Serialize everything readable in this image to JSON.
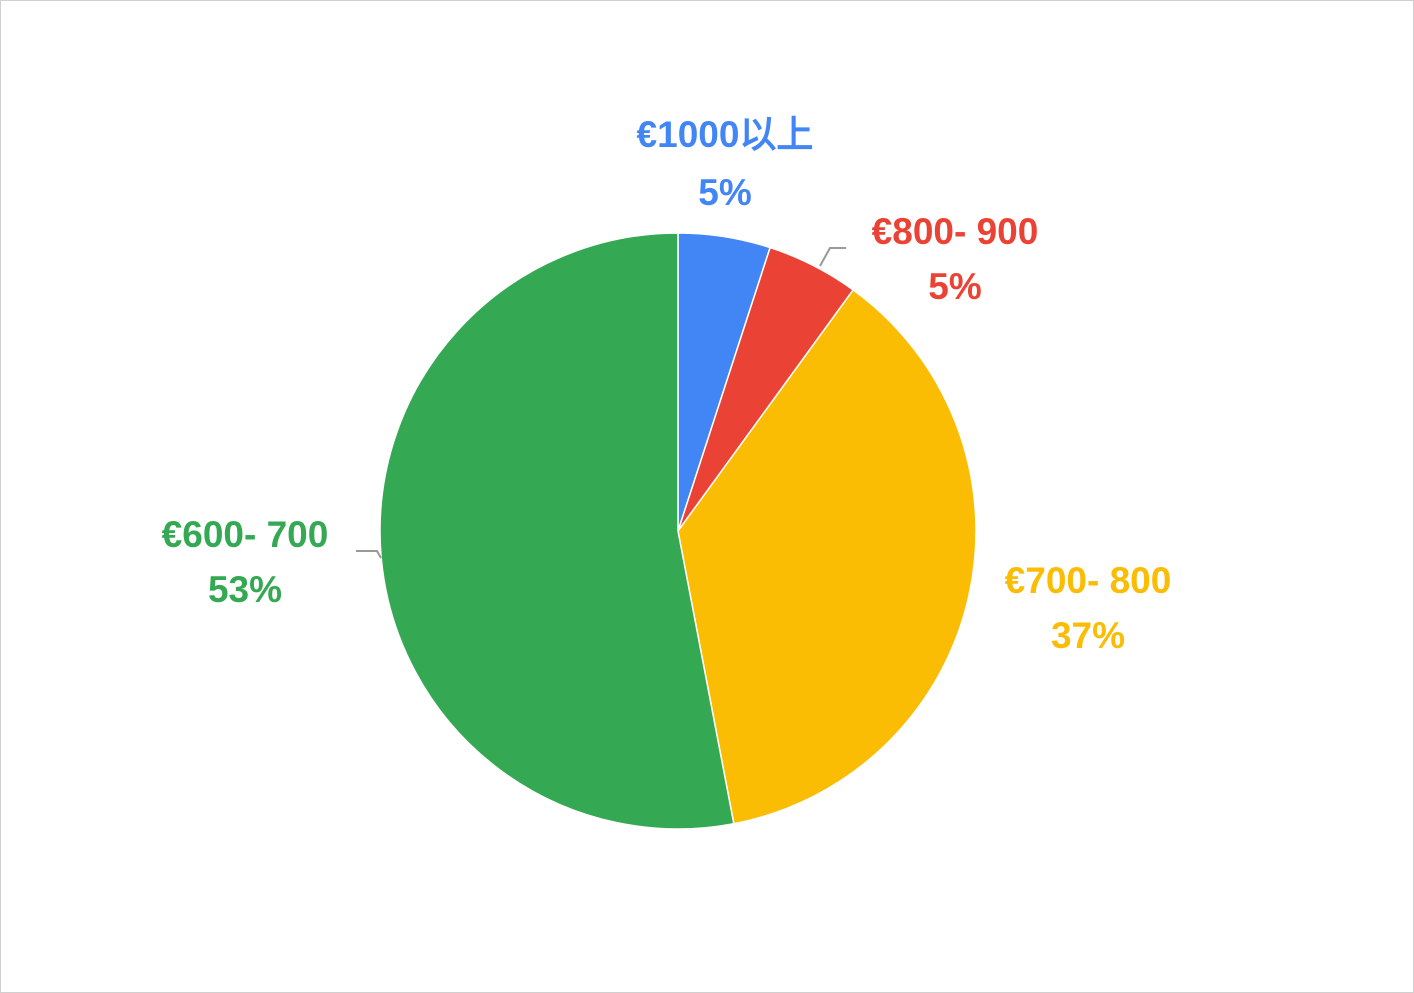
{
  "chart_data": {
    "type": "pie",
    "categories": [
      "€1000以上",
      "€800- 900",
      "€700- 800",
      "€600- 700"
    ],
    "values": [
      5,
      5,
      37,
      53
    ],
    "value_labels": [
      "5%",
      "5%",
      "37%",
      "53%"
    ],
    "colors": [
      "#4285f4",
      "#ea4335",
      "#fbbc04",
      "#34a853"
    ]
  }
}
